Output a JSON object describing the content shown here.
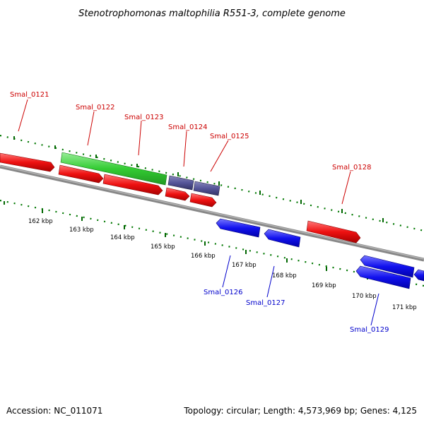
{
  "title": "Stenotrophomonas maltophilia R551-3, complete genome",
  "footer": {
    "accession": "Accession: NC_011071",
    "summary": "Topology: circular; Length: 4,573,969 bp; Genes: 4,125"
  },
  "colors": {
    "forward_gene": "#ee1111",
    "reverse_gene": "#1111ee",
    "highlight_gene": "#33cc33",
    "rna_gene": "#555599",
    "forward_label": "#cc0000",
    "reverse_label": "#0000cc",
    "backbone": "#888888",
    "ruler": "#007700"
  },
  "ruler_ticks": [
    "162 kbp",
    "163 kbp",
    "164 kbp",
    "165 kbp",
    "166 kbp",
    "167 kbp",
    "168 kbp",
    "169 kbp",
    "170 kbp",
    "171 kbp"
  ],
  "gene_labels": {
    "forward": [
      "Smal_0121",
      "Smal_0122",
      "Smal_0123",
      "Smal_0124",
      "Smal_0125",
      "Smal_0128"
    ],
    "reverse": [
      "Smal_0126",
      "Smal_0127",
      "Smal_0129"
    ]
  }
}
